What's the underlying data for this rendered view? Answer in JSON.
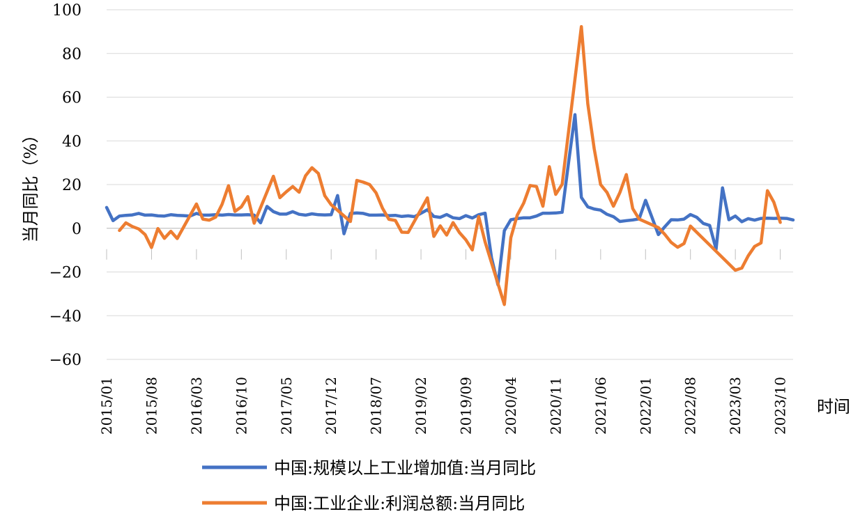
{
  "chart_data": {
    "type": "line",
    "ylabel": "当月同比（%）",
    "xlabel": "时间",
    "ylim": [
      -60,
      100
    ],
    "yticks": [
      100,
      80,
      60,
      40,
      20,
      0,
      -20,
      -40,
      -60
    ],
    "ytick_labels": [
      "100",
      "80",
      "60",
      "40",
      "20",
      "0",
      "−20",
      "−40",
      "−60"
    ],
    "grid": "horizontal",
    "legend": "bottom",
    "x": [
      "2015/01",
      "2015/02",
      "2015/03",
      "2015/04",
      "2015/05",
      "2015/06",
      "2015/07",
      "2015/08",
      "2015/09",
      "2015/10",
      "2015/11",
      "2015/12",
      "2016/01",
      "2016/02",
      "2016/03",
      "2016/04",
      "2016/05",
      "2016/06",
      "2016/07",
      "2016/08",
      "2016/09",
      "2016/10",
      "2016/11",
      "2016/12",
      "2017/01",
      "2017/02",
      "2017/03",
      "2017/04",
      "2017/05",
      "2017/06",
      "2017/07",
      "2017/08",
      "2017/09",
      "2017/10",
      "2017/11",
      "2017/12",
      "2018/01",
      "2018/02",
      "2018/03",
      "2018/04",
      "2018/05",
      "2018/06",
      "2018/07",
      "2018/08",
      "2018/09",
      "2018/10",
      "2018/11",
      "2018/12",
      "2019/01",
      "2019/02",
      "2019/03",
      "2019/04",
      "2019/05",
      "2019/06",
      "2019/07",
      "2019/08",
      "2019/09",
      "2019/10",
      "2019/11",
      "2019/12",
      "2020/01",
      "2020/02",
      "2020/03",
      "2020/04",
      "2020/05",
      "2020/06",
      "2020/07",
      "2020/08",
      "2020/09",
      "2020/10",
      "2020/11",
      "2020/12",
      "2021/01",
      "2021/02",
      "2021/03",
      "2021/04",
      "2021/05",
      "2021/06",
      "2021/07",
      "2021/08",
      "2021/09",
      "2021/10",
      "2021/11",
      "2021/12",
      "2022/01",
      "2022/02",
      "2022/03",
      "2022/04",
      "2022/05",
      "2022/06",
      "2022/07",
      "2022/08",
      "2022/09",
      "2022/10",
      "2022/11",
      "2022/12",
      "2023/01",
      "2023/02",
      "2023/03",
      "2023/04",
      "2023/05",
      "2023/06",
      "2023/07",
      "2023/08",
      "2023/09",
      "2023/10",
      "2023/11",
      "2023/12"
    ],
    "xtick_labels": [
      "2015/01",
      "2015/08",
      "2016/03",
      "2016/10",
      "2017/05",
      "2017/12",
      "2018/07",
      "2019/02",
      "2019/09",
      "2020/04",
      "2020/11",
      "2021/06",
      "2022/01",
      "2022/08",
      "2023/03",
      "2023/10"
    ],
    "series": [
      {
        "name": "中国:规模以上工业增加值:当月同比",
        "color": "#4472C4",
        "values": [
          9.5,
          3.5,
          5.6,
          5.9,
          6.1,
          6.8,
          6.0,
          6.1,
          5.7,
          5.6,
          6.2,
          5.9,
          5.8,
          5.6,
          6.8,
          6.0,
          6.0,
          6.2,
          6.0,
          6.3,
          6.1,
          6.1,
          6.2,
          6.0,
          2.5,
          10.0,
          7.6,
          6.5,
          6.5,
          7.6,
          6.4,
          6.0,
          6.6,
          6.2,
          6.1,
          6.2,
          15.0,
          -2.5,
          6.8,
          7.0,
          6.8,
          6.0,
          6.0,
          6.1,
          5.8,
          5.9,
          5.4,
          5.7,
          5.3,
          6.9,
          8.5,
          5.4,
          5.0,
          6.3,
          4.8,
          4.4,
          5.8,
          4.7,
          6.2,
          6.9,
          -13.5,
          -25.9,
          -1.1,
          3.9,
          4.4,
          4.8,
          4.8,
          5.6,
          6.9,
          6.9,
          7.0,
          7.3,
          30.0,
          52.0,
          14.1,
          9.8,
          8.8,
          8.3,
          6.4,
          5.3,
          3.1,
          3.5,
          3.8,
          4.3,
          12.8,
          5.0,
          -2.9,
          0.7,
          3.9,
          3.8,
          4.2,
          6.3,
          5.0,
          2.2,
          1.3,
          -9.5,
          18.5,
          3.9,
          5.6,
          3.0,
          4.4,
          3.7,
          4.5,
          4.6,
          4.5,
          4.6,
          4.5,
          3.8
        ]
      },
      {
        "name": "中国:工业企业:利润总额:当月同比",
        "color": "#ED7D31",
        "values": [
          null,
          null,
          -1.0,
          2.5,
          0.8,
          -0.3,
          -2.9,
          -8.8,
          -0.1,
          -4.6,
          -1.4,
          -4.7,
          null,
          null,
          11.1,
          4.2,
          3.7,
          5.1,
          11.0,
          19.5,
          7.7,
          9.8,
          14.5,
          2.3,
          null,
          null,
          23.8,
          14.0,
          16.7,
          19.1,
          16.5,
          24.0,
          27.7,
          25.1,
          14.9,
          10.8,
          null,
          null,
          3.1,
          21.9,
          21.1,
          20.0,
          16.2,
          9.2,
          4.1,
          3.6,
          -1.8,
          -1.9,
          null,
          null,
          13.9,
          -3.7,
          1.1,
          -3.1,
          2.6,
          -2.0,
          -5.3,
          -9.9,
          5.4,
          -6.3,
          null,
          null,
          -34.9,
          -4.3,
          6.0,
          11.5,
          19.6,
          19.1,
          10.1,
          28.2,
          15.5,
          20.1,
          null,
          null,
          92.3,
          57.0,
          36.4,
          20.0,
          16.4,
          10.1,
          16.3,
          24.6,
          9.0,
          4.2,
          null,
          null,
          0.3,
          -2.8,
          -6.5,
          -8.7,
          -7.0,
          1.0,
          null,
          null,
          null,
          null,
          null,
          null,
          -19.2,
          -18.2,
          -12.6,
          -8.3,
          -6.7,
          17.2,
          11.9,
          2.7,
          null,
          null
        ]
      }
    ]
  }
}
